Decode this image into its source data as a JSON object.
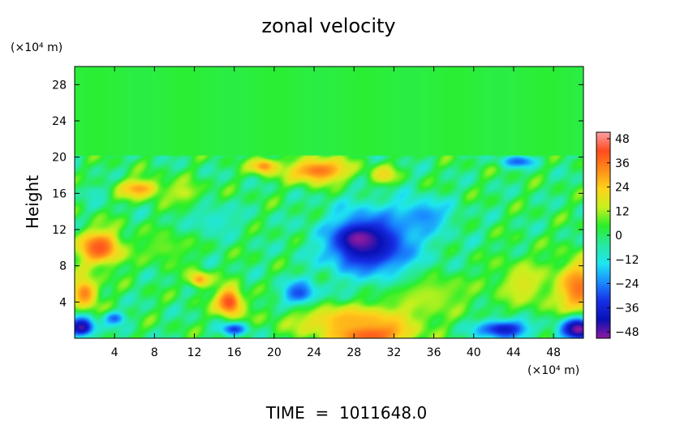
{
  "chart_data": {
    "type": "heatmap",
    "title": "zonal velocity",
    "ylabel": "Height",
    "y_unit": "(×10⁴ m)",
    "x_unit": "(×10⁴ m)",
    "x_ticks": [
      "4",
      "8",
      "12",
      "16",
      "20",
      "24",
      "28",
      "32",
      "36",
      "40",
      "44",
      "48"
    ],
    "y_ticks": [
      "4",
      "8",
      "12",
      "16",
      "20",
      "24",
      "28"
    ],
    "xlim": [
      0,
      51
    ],
    "ylim": [
      0,
      30
    ],
    "colorbar": {
      "ticks": [
        "48",
        "36",
        "24",
        "12",
        "0",
        "−12",
        "−24",
        "−36",
        "−48"
      ],
      "range": [
        -48,
        48
      ],
      "colors": [
        "#ff9fa6",
        "#ff4b1e",
        "#ff8c1a",
        "#ffd21a",
        "#c8f01e",
        "#2aef2a",
        "#28e8a0",
        "#1ee6f0",
        "#1a8cff",
        "#1630e6",
        "#0a10b4",
        "#8c1aa0"
      ]
    },
    "field": {
      "background": 0,
      "upper_layer": {
        "y_from": 20.2,
        "y_to": 30,
        "value": 3
      },
      "features": [
        {
          "x": 2.5,
          "y": 10,
          "rx": 2.5,
          "ry": 2.2,
          "value": 38
        },
        {
          "x": 1,
          "y": 5,
          "rx": 1.5,
          "ry": 2,
          "value": 32
        },
        {
          "x": 15.5,
          "y": 4,
          "rx": 1.5,
          "ry": 1.8,
          "value": 40
        },
        {
          "x": 12.5,
          "y": 6.5,
          "rx": 1.2,
          "ry": 1,
          "value": 28
        },
        {
          "x": 6.5,
          "y": 16.5,
          "rx": 2.5,
          "ry": 1.2,
          "value": 28
        },
        {
          "x": 24.5,
          "y": 18.5,
          "rx": 3.5,
          "ry": 1.6,
          "value": 34
        },
        {
          "x": 19,
          "y": 19,
          "rx": 1.5,
          "ry": 1,
          "value": 30
        },
        {
          "x": 31,
          "y": 18,
          "rx": 1.5,
          "ry": 1.2,
          "value": 22
        },
        {
          "x": 50.5,
          "y": 5.5,
          "rx": 2.5,
          "ry": 3.5,
          "value": 34
        },
        {
          "x": 45,
          "y": 6,
          "rx": 3,
          "ry": 3,
          "value": 16
        },
        {
          "x": 35,
          "y": 5,
          "rx": 5,
          "ry": 2.5,
          "value": 14
        },
        {
          "x": 29.5,
          "y": 0.6,
          "rx": 4,
          "ry": 1.6,
          "value": 46
        },
        {
          "x": 28,
          "y": 2,
          "rx": 7,
          "ry": 2,
          "value": 26
        },
        {
          "x": 11,
          "y": 16,
          "rx": 2,
          "ry": 1.5,
          "value": 14
        },
        {
          "x": 30,
          "y": 10.5,
          "rx": 5.5,
          "ry": 4.5,
          "value": -30
        },
        {
          "x": 29,
          "y": 10.5,
          "rx": 3.2,
          "ry": 2.5,
          "value": -42
        },
        {
          "x": 28.5,
          "y": 11,
          "rx": 1.5,
          "ry": 1,
          "value": -48
        },
        {
          "x": 35,
          "y": 13.5,
          "rx": 3,
          "ry": 2,
          "value": -22
        },
        {
          "x": 22.5,
          "y": 5,
          "rx": 2,
          "ry": 1.5,
          "value": -28
        },
        {
          "x": 43,
          "y": 1,
          "rx": 3,
          "ry": 1.2,
          "value": -36
        },
        {
          "x": 50.5,
          "y": 1,
          "rx": 2,
          "ry": 1.5,
          "value": -48
        },
        {
          "x": 0.7,
          "y": 1.2,
          "rx": 1.5,
          "ry": 1.2,
          "value": -44
        },
        {
          "x": 4,
          "y": 2.2,
          "rx": 1.2,
          "ry": 0.8,
          "value": -26
        },
        {
          "x": 16,
          "y": 1,
          "rx": 1.5,
          "ry": 0.8,
          "value": -30
        },
        {
          "x": 44.5,
          "y": 19.5,
          "rx": 2,
          "ry": 0.7,
          "value": -26
        },
        {
          "x": 14,
          "y": 13,
          "rx": 3,
          "ry": 2,
          "value": -10
        },
        {
          "x": 2,
          "y": 16,
          "rx": 1.5,
          "ry": 1.2,
          "value": -8
        },
        {
          "x": 9,
          "y": 10,
          "rx": 3,
          "ry": 2,
          "value": 8
        }
      ]
    },
    "footer": "TIME  =  1011648.0"
  }
}
